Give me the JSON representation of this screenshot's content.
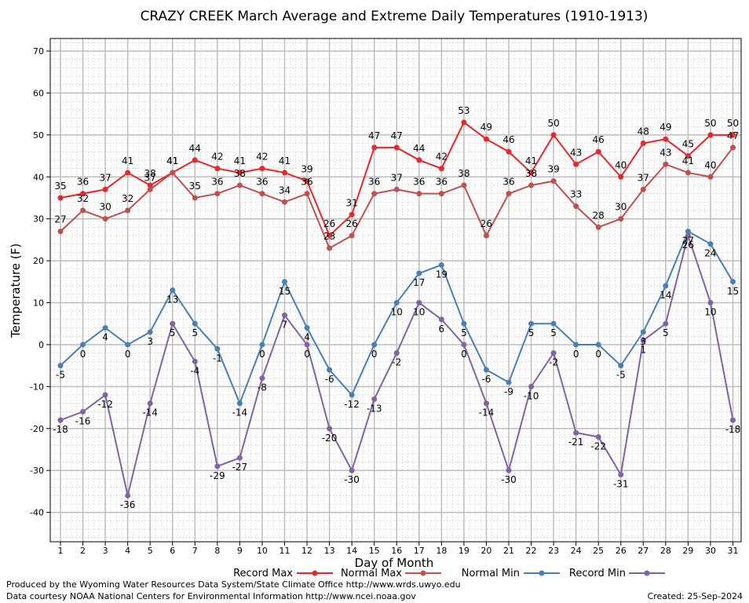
{
  "chart_data": {
    "type": "line",
    "title": "CRAZY CREEK March Average and Extreme Daily Temperatures (1910-1913)",
    "xlabel": "Day of Month",
    "ylabel": "Temperature (F)",
    "ylim": [
      -47,
      73
    ],
    "yticks": [
      -40,
      -30,
      -20,
      -10,
      0,
      10,
      20,
      30,
      40,
      50,
      60,
      70
    ],
    "x": [
      1,
      2,
      3,
      4,
      5,
      6,
      7,
      8,
      9,
      10,
      11,
      12,
      13,
      14,
      15,
      16,
      17,
      18,
      19,
      20,
      21,
      22,
      23,
      24,
      25,
      26,
      27,
      28,
      29,
      30,
      31
    ],
    "grid": true,
    "legend_position": "bottom",
    "series": [
      {
        "name": "Record Max",
        "color": "#e8262b",
        "values": [
          35,
          36,
          37,
          41,
          38,
          41,
          44,
          42,
          41,
          42,
          41,
          39,
          26,
          31,
          47,
          47,
          44,
          42,
          53,
          49,
          46,
          41,
          50,
          43,
          46,
          40,
          48,
          49,
          45,
          50,
          50
        ]
      },
      {
        "name": "Normal Max",
        "color": "#c0504d",
        "values": [
          27,
          32,
          30,
          32,
          37,
          41,
          35,
          36,
          38,
          36,
          34,
          36,
          23,
          26,
          36,
          37,
          36,
          36,
          38,
          26,
          36,
          38,
          39,
          33,
          28,
          30,
          37,
          43,
          41,
          40,
          47
        ]
      },
      {
        "name": "Normal Min",
        "color": "#4a7fb5",
        "values": [
          -5,
          0,
          4,
          0,
          3,
          13,
          5,
          -1,
          -14,
          0,
          15,
          4,
          -6,
          -12,
          0,
          10,
          17,
          19,
          5,
          -6,
          -9,
          5,
          5,
          0,
          0,
          -5,
          3,
          14,
          27,
          24,
          15
        ]
      },
      {
        "name": "Record Min",
        "color": "#8064a2",
        "values": [
          -18,
          -16,
          -12,
          -36,
          -14,
          5,
          -4,
          -29,
          -27,
          -8,
          7,
          0,
          -20,
          -30,
          -13,
          -2,
          10,
          6,
          0,
          -14,
          -30,
          -10,
          -2,
          -21,
          -22,
          -31,
          1,
          5,
          26,
          10,
          -18
        ]
      }
    ]
  },
  "footer": {
    "produced_by": "Produced by the Wyoming Water Resources Data System/State Climate Office http://www.wrds.uwyo.edu",
    "courtesy": "Data courtesy NOAA National Centers for Environmental Information http://www.ncei.noaa.gov",
    "created": "Created:  25-Sep-2024"
  }
}
